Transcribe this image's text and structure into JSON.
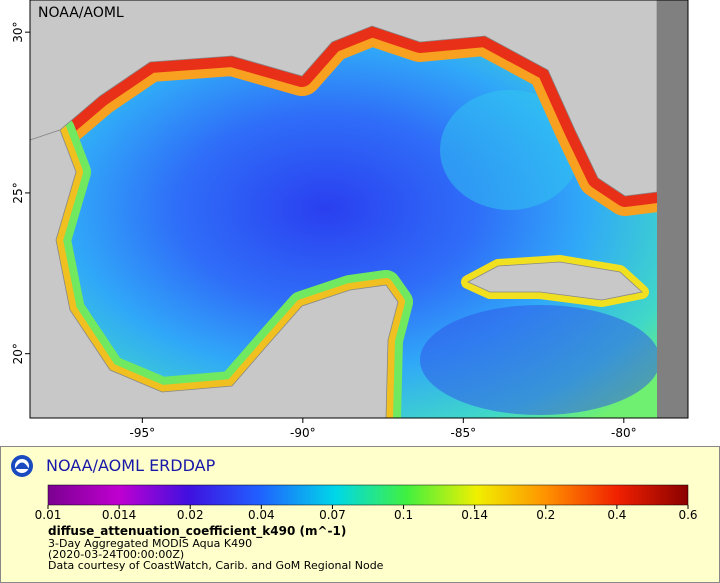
{
  "chart_data": {
    "type": "map",
    "map_label": "NOAA/AOML",
    "xlim": [
      -98.5,
      -78
    ],
    "ylim": [
      18,
      31
    ],
    "xticks": [
      {
        "value": -95,
        "label": "-95°"
      },
      {
        "value": -90,
        "label": "-90°"
      },
      {
        "value": -85,
        "label": "-85°"
      },
      {
        "value": -80,
        "label": "-80°"
      }
    ],
    "yticks": [
      {
        "value": 20,
        "label": "20°"
      },
      {
        "value": 25,
        "label": "25°"
      },
      {
        "value": 30,
        "label": "30°"
      }
    ]
  },
  "legend": {
    "title": "NOAA/AOML ERDDAP",
    "colorbar": {
      "scale": "log",
      "ticks": [
        0.01,
        0.014,
        0.02,
        0.04,
        0.07,
        0.1,
        0.14,
        0.2,
        0.4,
        0.6
      ]
    },
    "variable": "diffuse_attenuation_coefficient_k490 (m^-1)",
    "lines": [
      "3-Day Aggregated MODIS Aqua K490",
      "(2020-03-24T00:00:00Z)",
      "Data courtesy of CoastWatch, Carib. and GoM Regional Node"
    ]
  }
}
